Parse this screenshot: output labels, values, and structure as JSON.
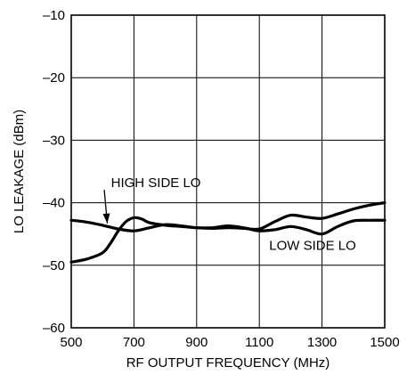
{
  "chart_data": {
    "type": "line",
    "xlabel": "RF OUTPUT FREQUENCY (MHz)",
    "ylabel": "LO LEAKAGE (dBm)",
    "xlim": [
      500,
      1500
    ],
    "ylim": [
      -60,
      -10
    ],
    "x_ticks": [
      "500",
      "700",
      "900",
      "1100",
      "1300",
      "1500"
    ],
    "y_ticks": [
      "–10",
      "–20",
      "–30",
      "–40",
      "–50",
      "–60"
    ],
    "grid": true,
    "series": [
      {
        "name": "HIGH SIDE LO",
        "x": [
          500,
          550,
          600,
          650,
          700,
          750,
          800,
          850,
          900,
          950,
          1000,
          1050,
          1100,
          1150,
          1200,
          1250,
          1300,
          1350,
          1400,
          1450,
          1500
        ],
        "y": [
          -42.8,
          -43.1,
          -43.6,
          -44.2,
          -44.5,
          -44.0,
          -43.5,
          -43.7,
          -44.0,
          -44.1,
          -44.0,
          -44.1,
          -44.2,
          -43.0,
          -42.0,
          -42.3,
          -42.5,
          -41.8,
          -41.0,
          -40.4,
          -40.0
        ]
      },
      {
        "name": "LOW SIDE LO",
        "x": [
          500,
          550,
          600,
          625,
          650,
          675,
          700,
          725,
          750,
          800,
          850,
          900,
          950,
          1000,
          1050,
          1100,
          1150,
          1200,
          1250,
          1300,
          1350,
          1400,
          1450,
          1500
        ],
        "y": [
          -49.5,
          -49.0,
          -48.0,
          -46.5,
          -44.5,
          -43.0,
          -42.4,
          -42.6,
          -43.2,
          -43.6,
          -43.8,
          -44.0,
          -44.0,
          -43.7,
          -44.0,
          -44.5,
          -44.3,
          -43.8,
          -44.3,
          -45.0,
          -43.8,
          -42.9,
          -42.8,
          -42.8
        ]
      }
    ],
    "annotations": [
      {
        "text": "HIGH SIDE LO",
        "x": 770,
        "y": -37.5,
        "arrow_to": [
          615,
          -43.3
        ]
      },
      {
        "text": "LOW SIDE LO",
        "x": 1270,
        "y": -47.5
      }
    ]
  }
}
